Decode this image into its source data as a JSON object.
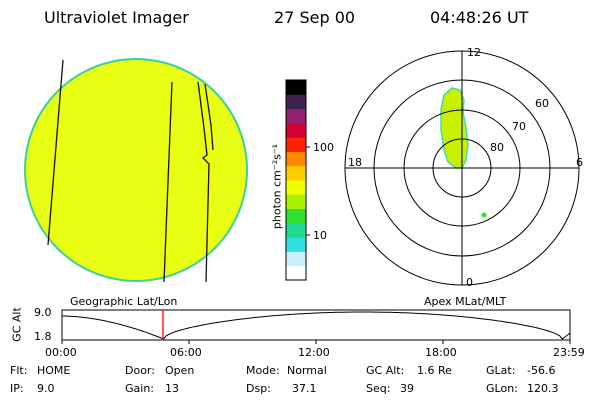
{
  "header": {
    "instrument": "Ultraviolet Imager",
    "date": "27 Sep 00",
    "time": "04:48:26 UT"
  },
  "colorbar": {
    "unit_label": "photon cm⁻²s⁻¹",
    "ticks": [
      {
        "label": "100",
        "value": 100
      },
      {
        "label": "10",
        "value": 10
      }
    ],
    "colors": [
      "#ffffff",
      "#c8f0ff",
      "#30e0e0",
      "#20d890",
      "#30e030",
      "#a8f000",
      "#f0ff00",
      "#ffcc00",
      "#ff8800",
      "#ff2000",
      "#d00030",
      "#902070",
      "#402050",
      "#000000"
    ]
  },
  "polar_plot": {
    "mlt_labels": {
      "top": "12",
      "left": "18",
      "right": "6",
      "bottom": "0"
    },
    "lat_labels": [
      "60",
      "70",
      "80"
    ]
  },
  "geo_image": {
    "fill_color": "#e8ff14",
    "edge_color": "#3cd0a0"
  },
  "timeline": {
    "left_caption": "Geographic Lat/Lon",
    "right_caption": "Apex MLat/MLT",
    "axis_label": "GC Alt",
    "y_ticks": [
      "9.0",
      "1.8"
    ],
    "x_ticks": [
      "00:00",
      "06:00",
      "12:00",
      "18:00",
      "23:59"
    ],
    "marker_color": "#ff0000"
  },
  "status": {
    "flt_label": "Flt:",
    "flt_value": "HOME",
    "ip_label": "IP:",
    "ip_value": "9.0",
    "door_label": "Door:",
    "door_value": "Open",
    "gain_label": "Gain:",
    "gain_value": "13",
    "mode_label": "Mode:",
    "mode_value": "Normal",
    "dsp_label": "Dsp:",
    "dsp_value": "37.1",
    "gcalt_label": "GC Alt:",
    "gcalt_value": "1.6 Re",
    "seq_label": "Seq:",
    "seq_value": "39",
    "glat_label": "GLat:",
    "glat_value": "-56.6",
    "glon_label": "GLon:",
    "glon_value": "120.3"
  }
}
